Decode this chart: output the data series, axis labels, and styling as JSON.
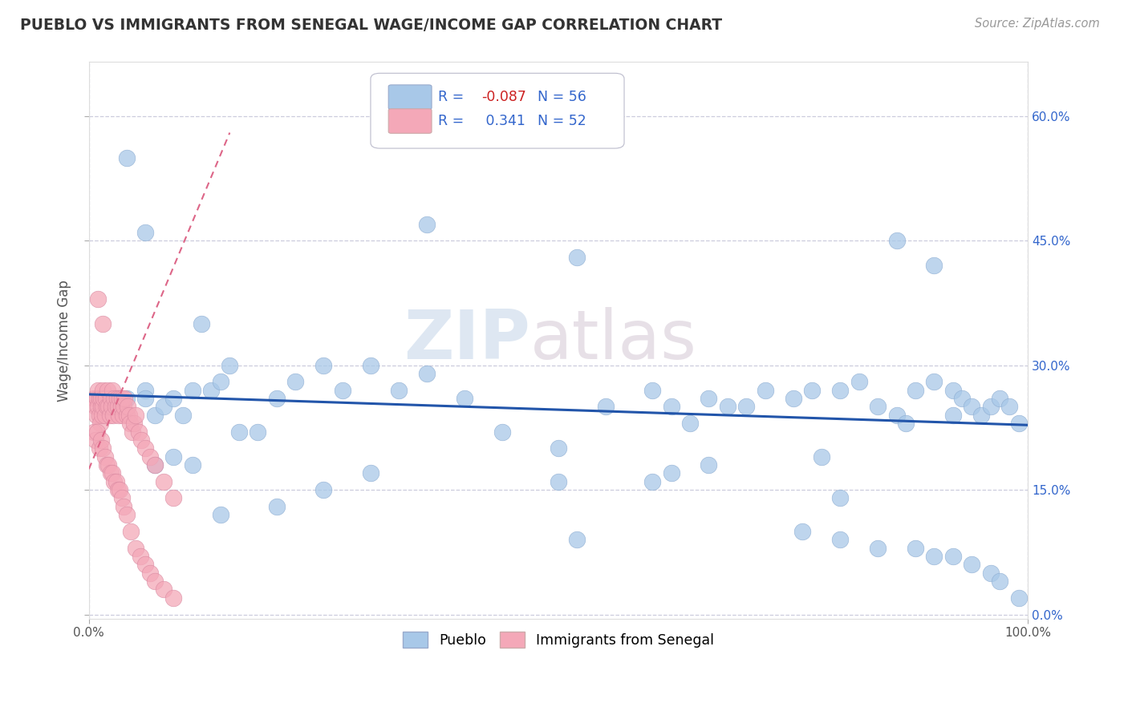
{
  "title": "PUEBLO VS IMMIGRANTS FROM SENEGAL WAGE/INCOME GAP CORRELATION CHART",
  "source_text": "Source: ZipAtlas.com",
  "ylabel": "Wage/Income Gap",
  "xlim": [
    0.0,
    1.0
  ],
  "ylim": [
    -0.005,
    0.665
  ],
  "xticks": [
    0.0,
    1.0
  ],
  "xticklabels": [
    "0.0%",
    "100.0%"
  ],
  "yticks": [
    0.0,
    0.15,
    0.3,
    0.45,
    0.6
  ],
  "yticklabels": [
    "",
    "",
    "",
    "",
    ""
  ],
  "right_ytick_labels": [
    "0.0%",
    "15.0%",
    "30.0%",
    "45.0%",
    "60.0%"
  ],
  "pueblo_color": "#a8c8e8",
  "senegal_color": "#f4a8b8",
  "pueblo_line_color": "#2255aa",
  "senegal_line_color": "#dd6688",
  "watermark_zip": "ZIP",
  "watermark_atlas": "atlas",
  "background_color": "#ffffff",
  "grid_color": "#ccccdd",
  "pueblo_x": [
    0.02,
    0.03,
    0.04,
    0.06,
    0.06,
    0.07,
    0.08,
    0.09,
    0.1,
    0.11,
    0.12,
    0.13,
    0.14,
    0.15,
    0.16,
    0.18,
    0.2,
    0.22,
    0.25,
    0.27,
    0.3,
    0.33,
    0.36,
    0.4,
    0.44,
    0.5,
    0.55,
    0.6,
    0.62,
    0.64,
    0.66,
    0.68,
    0.7,
    0.72,
    0.75,
    0.77,
    0.8,
    0.82,
    0.84,
    0.86,
    0.88,
    0.9,
    0.92,
    0.93,
    0.94,
    0.95,
    0.96,
    0.97,
    0.98,
    0.99,
    0.5,
    0.52,
    0.78,
    0.8,
    0.87,
    0.92
  ],
  "pueblo_y": [
    0.25,
    0.26,
    0.26,
    0.27,
    0.26,
    0.24,
    0.25,
    0.26,
    0.24,
    0.27,
    0.35,
    0.27,
    0.28,
    0.3,
    0.22,
    0.22,
    0.26,
    0.28,
    0.3,
    0.27,
    0.3,
    0.27,
    0.29,
    0.26,
    0.22,
    0.2,
    0.25,
    0.27,
    0.25,
    0.23,
    0.26,
    0.25,
    0.25,
    0.27,
    0.26,
    0.27,
    0.27,
    0.28,
    0.25,
    0.24,
    0.27,
    0.28,
    0.27,
    0.26,
    0.25,
    0.24,
    0.25,
    0.26,
    0.25,
    0.23,
    0.16,
    0.09,
    0.19,
    0.14,
    0.23,
    0.24
  ],
  "pueblo_y_outliers": [
    0.55,
    0.47,
    0.46,
    0.45,
    0.43,
    0.42
  ],
  "pueblo_x_outliers": [
    0.04,
    0.36,
    0.06,
    0.86,
    0.52,
    0.9
  ],
  "pueblo_y_low": [
    0.18,
    0.19,
    0.18,
    0.12,
    0.13,
    0.15,
    0.17,
    0.16,
    0.17,
    0.18,
    0.1,
    0.09,
    0.08,
    0.08,
    0.07,
    0.07,
    0.06,
    0.05,
    0.04,
    0.02
  ],
  "pueblo_x_low": [
    0.07,
    0.09,
    0.11,
    0.14,
    0.2,
    0.25,
    0.3,
    0.6,
    0.62,
    0.66,
    0.76,
    0.8,
    0.84,
    0.88,
    0.9,
    0.92,
    0.94,
    0.96,
    0.97,
    0.99
  ],
  "senegal_x": [
    0.005,
    0.007,
    0.008,
    0.009,
    0.01,
    0.01,
    0.011,
    0.011,
    0.012,
    0.013,
    0.013,
    0.014,
    0.015,
    0.015,
    0.016,
    0.017,
    0.018,
    0.019,
    0.02,
    0.021,
    0.022,
    0.023,
    0.024,
    0.025,
    0.026,
    0.027,
    0.028,
    0.03,
    0.031,
    0.032,
    0.033,
    0.034,
    0.035,
    0.036,
    0.037,
    0.038,
    0.04,
    0.041,
    0.043,
    0.044,
    0.046,
    0.048,
    0.05,
    0.053,
    0.056,
    0.06,
    0.065,
    0.07,
    0.08,
    0.09,
    0.01,
    0.015
  ],
  "senegal_y": [
    0.26,
    0.25,
    0.24,
    0.26,
    0.27,
    0.25,
    0.24,
    0.26,
    0.23,
    0.25,
    0.26,
    0.24,
    0.27,
    0.25,
    0.26,
    0.24,
    0.26,
    0.25,
    0.27,
    0.25,
    0.24,
    0.26,
    0.25,
    0.27,
    0.24,
    0.26,
    0.25,
    0.26,
    0.25,
    0.24,
    0.26,
    0.25,
    0.26,
    0.24,
    0.25,
    0.26,
    0.24,
    0.25,
    0.24,
    0.23,
    0.22,
    0.23,
    0.24,
    0.22,
    0.21,
    0.2,
    0.19,
    0.18,
    0.16,
    0.14,
    0.38,
    0.35
  ],
  "senegal_y_low": [
    0.22,
    0.21,
    0.22,
    0.2,
    0.21,
    0.2,
    0.19,
    0.18,
    0.18,
    0.17,
    0.17,
    0.16,
    0.16,
    0.15,
    0.15,
    0.14,
    0.13,
    0.12,
    0.1,
    0.08,
    0.07,
    0.06,
    0.05,
    0.04,
    0.03,
    0.02
  ],
  "senegal_x_low": [
    0.005,
    0.007,
    0.009,
    0.011,
    0.013,
    0.015,
    0.017,
    0.019,
    0.021,
    0.023,
    0.025,
    0.027,
    0.029,
    0.031,
    0.033,
    0.035,
    0.037,
    0.04,
    0.045,
    0.05,
    0.055,
    0.06,
    0.065,
    0.07,
    0.08,
    0.09
  ],
  "pueblo_trend_x": [
    0.0,
    1.0
  ],
  "pueblo_trend_y": [
    0.265,
    0.228
  ],
  "senegal_trend_x": [
    0.0,
    0.15
  ],
  "senegal_trend_y": [
    0.175,
    0.58
  ]
}
